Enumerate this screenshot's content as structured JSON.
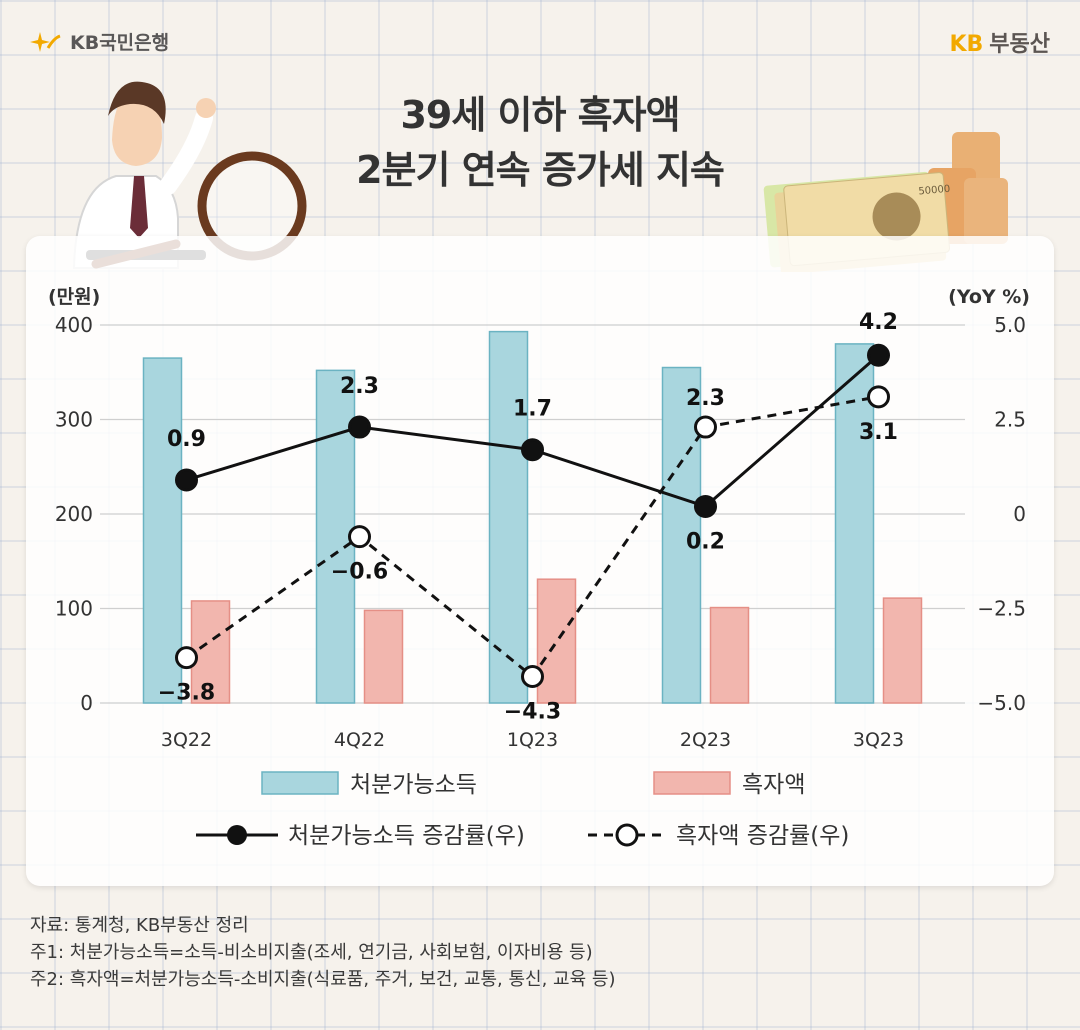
{
  "header": {
    "left_brand": "KB국민은행",
    "right_brand_prefix": "KB",
    "right_brand_name": "부동산",
    "title_line1": "39세 이하 흑자액",
    "title_line2": "2분기 연속 증가세 지속"
  },
  "chart_data": {
    "type": "bar",
    "categories": [
      "3Q22",
      "4Q22",
      "1Q23",
      "2Q23",
      "3Q23"
    ],
    "ylabel_left": "(만원)",
    "ylabel_right": "(YoY %)",
    "ylim_left": [
      0,
      400
    ],
    "yticks_left": [
      "0",
      "100",
      "200",
      "300",
      "400"
    ],
    "ylim_right": [
      -5.0,
      5.0
    ],
    "yticks_right": [
      "−5.0",
      "−2.5",
      "0",
      "2.5",
      "5.0"
    ],
    "grid": true,
    "legend_position": "bottom",
    "bar_series": [
      {
        "name": "처분가능소득",
        "values": [
          365,
          352,
          393,
          355,
          380
        ],
        "color": "#a9d6de",
        "border": "#6bb3c2"
      },
      {
        "name": "흑자액",
        "values": [
          108,
          98,
          131,
          101,
          111
        ],
        "color": "#f2b6ae",
        "border": "#e58f86"
      }
    ],
    "line_series": [
      {
        "name": "처분가능소득 증감률(우)",
        "values": [
          0.9,
          2.3,
          1.7,
          0.2,
          4.2
        ],
        "labels": [
          "0.9",
          "2.3",
          "1.7",
          "0.2",
          "4.2"
        ],
        "style": "solid"
      },
      {
        "name": "흑자액 증감률(우)",
        "values": [
          -3.8,
          -0.6,
          -4.3,
          2.3,
          3.1
        ],
        "labels": [
          "−3.8",
          "−0.6",
          "−4.3",
          "2.3",
          "3.1"
        ],
        "style": "dashed"
      }
    ]
  },
  "footer": {
    "source": "자료: 통계청, KB부동산 정리",
    "note1": "주1: 처분가능소득=소득-비소비지출(조세, 연기금, 사회보험, 이자비용 등)",
    "note2": "주2: 흑자액=처분가능소득-소비지출(식료품, 주거, 보건, 교통, 통신, 교육 등)"
  }
}
